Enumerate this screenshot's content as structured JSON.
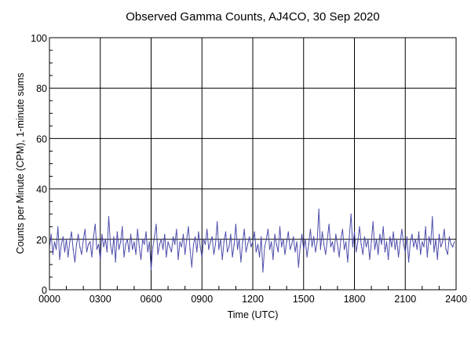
{
  "chart_data": {
    "type": "line",
    "title": "Observed Gamma Counts, AJ4CO, 30 Sep 2020",
    "xlabel": "Time (UTC)",
    "ylabel": "Counts per Minute (CPM), 1-minute sums",
    "xlim": [
      0,
      24
    ],
    "ylim": [
      0,
      100
    ],
    "grid": true,
    "x_tick_labels": [
      "0000",
      "0300",
      "0600",
      "0900",
      "1200",
      "1500",
      "1800",
      "2100",
      "2400"
    ],
    "y_tick_labels": [
      "0",
      "20",
      "40",
      "60",
      "80",
      "100"
    ],
    "series": [
      {
        "name": "CPM",
        "color": "#3b3ba3",
        "x_step_hours": 0.1,
        "values": [
          17,
          22,
          14,
          19,
          16,
          25,
          12,
          18,
          21,
          15,
          20,
          13,
          19,
          23,
          16,
          11,
          18,
          22,
          17,
          14,
          20,
          24,
          15,
          18,
          19,
          13,
          21,
          26,
          16,
          18,
          12,
          22,
          17,
          20,
          15,
          29,
          18,
          14,
          21,
          11,
          23,
          16,
          19,
          25,
          13,
          18,
          20,
          15,
          22,
          16,
          19,
          14,
          24,
          17,
          12,
          20,
          18,
          23,
          15,
          19,
          8,
          17,
          21,
          26,
          14,
          18,
          20,
          16,
          22,
          13,
          19,
          17,
          15,
          21,
          18,
          24,
          12,
          19,
          17,
          22,
          14,
          20,
          25,
          16,
          9,
          18,
          21,
          15,
          23,
          17,
          13,
          20,
          18,
          24,
          16,
          19,
          21,
          14,
          18,
          27,
          16,
          20,
          12,
          19,
          23,
          15,
          17,
          22,
          13,
          18,
          26,
          16,
          20,
          11,
          19,
          24,
          15,
          18,
          21,
          17,
          19,
          23,
          15,
          18,
          13,
          21,
          7,
          17,
          20,
          24,
          16,
          19,
          12,
          22,
          18,
          15,
          25,
          17,
          20,
          14,
          19,
          23,
          16,
          18,
          21,
          15,
          19,
          9,
          17,
          22,
          16,
          20,
          13,
          18,
          24,
          17,
          21,
          15,
          19,
          32,
          16,
          23,
          18,
          14,
          20,
          26,
          17,
          19,
          15,
          22,
          18,
          13,
          20,
          24,
          16,
          19,
          11,
          21,
          30,
          17,
          23,
          15,
          19,
          25,
          18,
          14,
          21,
          17,
          20,
          12,
          19,
          27,
          16,
          20,
          14,
          22,
          18,
          25,
          15,
          19,
          12,
          21,
          17,
          23,
          16,
          20,
          13,
          19,
          24,
          18,
          15,
          21,
          11,
          19,
          22,
          17,
          20,
          16,
          23,
          14,
          19,
          17,
          25,
          13,
          21,
          18,
          29,
          15,
          20,
          12,
          22,
          17,
          19,
          24,
          16,
          14,
          21,
          18,
          17,
          19
        ]
      }
    ]
  }
}
